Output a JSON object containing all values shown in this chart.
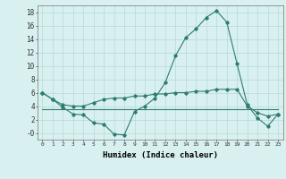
{
  "x": [
    0,
    1,
    2,
    3,
    4,
    5,
    6,
    7,
    8,
    9,
    10,
    11,
    12,
    13,
    14,
    15,
    16,
    17,
    18,
    19,
    20,
    21,
    22,
    23
  ],
  "line1": [
    6.0,
    5.0,
    3.8,
    2.8,
    2.7,
    1.5,
    1.3,
    -0.2,
    -0.3,
    3.2,
    4.0,
    5.2,
    7.5,
    11.5,
    14.2,
    15.5,
    17.2,
    18.2,
    16.5,
    10.3,
    4.2,
    2.2,
    1.0,
    2.8
  ],
  "line2": [
    3.5,
    3.5,
    3.5,
    3.5,
    3.5,
    3.5,
    3.5,
    3.5,
    3.5,
    3.5,
    3.5,
    3.5,
    3.5,
    3.5,
    3.5,
    3.5,
    3.5,
    3.5,
    3.5,
    3.5,
    3.5,
    3.5,
    3.5,
    3.5
  ],
  "line3": [
    6.0,
    5.0,
    4.2,
    4.0,
    4.0,
    4.5,
    5.0,
    5.2,
    5.2,
    5.5,
    5.5,
    5.8,
    5.8,
    6.0,
    6.0,
    6.2,
    6.2,
    6.5,
    6.5,
    6.5,
    4.0,
    3.0,
    2.5,
    2.8
  ],
  "color": "#2E7D6E",
  "bg_color": "#D8F0F0",
  "grid_color": "#B8D8D8",
  "xlabel": "Humidex (Indice chaleur)",
  "ylim": [
    -1,
    19
  ],
  "xlim": [
    -0.5,
    23.5
  ],
  "yticks": [
    0,
    2,
    4,
    6,
    8,
    10,
    12,
    14,
    16,
    18
  ],
  "ytick_labels": [
    "-0",
    "2",
    "4",
    "6",
    "8",
    "10",
    "12",
    "14",
    "16",
    "18"
  ],
  "xticks": [
    0,
    1,
    2,
    3,
    4,
    5,
    6,
    7,
    8,
    9,
    10,
    11,
    12,
    13,
    14,
    15,
    16,
    17,
    18,
    19,
    20,
    21,
    22,
    23
  ],
  "xtick_labels": [
    "0",
    "1",
    "2",
    "3",
    "4",
    "5",
    "6",
    "7",
    "8",
    "9",
    "10",
    "11",
    "12",
    "13",
    "14",
    "15",
    "16",
    "17",
    "18",
    "19",
    "20",
    "21",
    "22",
    "23"
  ]
}
